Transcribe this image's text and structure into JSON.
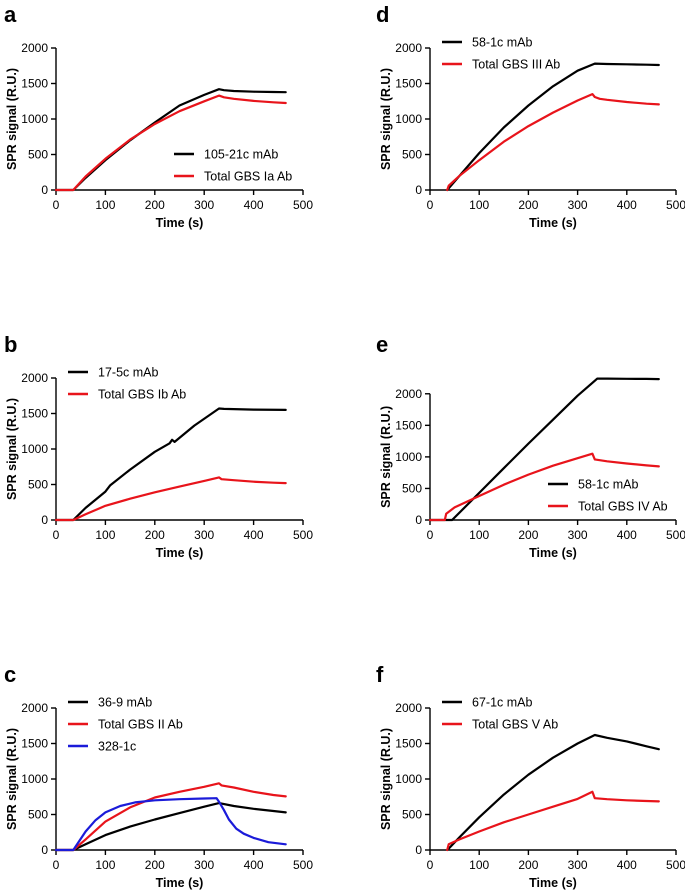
{
  "chart_data": [
    {
      "panel": "a",
      "type": "line",
      "xlabel": "Time (s)",
      "ylabel": "SPR signal (R.U.)",
      "xlim": [
        0,
        500
      ],
      "ylim": [
        0,
        2000
      ],
      "xticks": [
        0,
        100,
        200,
        300,
        400,
        500
      ],
      "yticks": [
        0,
        500,
        1000,
        1500,
        2000
      ],
      "legend_position": "bottom-right",
      "series": [
        {
          "name": "105-21c mAb",
          "color": "#000000",
          "x": [
            0,
            35,
            60,
            100,
            150,
            200,
            250,
            300,
            330,
            340,
            360,
            400,
            440,
            465
          ],
          "y": [
            0,
            0,
            170,
            420,
            700,
            950,
            1190,
            1340,
            1420,
            1405,
            1395,
            1385,
            1380,
            1378
          ]
        },
        {
          "name": "Total GBS Ia Ab",
          "color": "#e8141b",
          "x": [
            0,
            35,
            60,
            100,
            150,
            200,
            250,
            300,
            330,
            340,
            360,
            400,
            440,
            465
          ],
          "y": [
            0,
            0,
            190,
            440,
            710,
            930,
            1110,
            1250,
            1330,
            1305,
            1285,
            1255,
            1235,
            1225
          ]
        }
      ]
    },
    {
      "panel": "b",
      "type": "line",
      "xlabel": "Time (s)",
      "ylabel": "SPR signal (R.U.)",
      "xlim": [
        0,
        500
      ],
      "ylim": [
        0,
        2000
      ],
      "xticks": [
        0,
        100,
        200,
        300,
        400,
        500
      ],
      "yticks": [
        0,
        500,
        1000,
        1500,
        2000
      ],
      "legend_position": "top-left",
      "series": [
        {
          "name": "17-5c mAb",
          "color": "#000000",
          "x": [
            0,
            35,
            60,
            100,
            110,
            150,
            200,
            230,
            235,
            240,
            280,
            330,
            340,
            400,
            465
          ],
          "y": [
            0,
            0,
            170,
            400,
            490,
            710,
            960,
            1080,
            1130,
            1100,
            1330,
            1570,
            1565,
            1555,
            1550
          ]
        },
        {
          "name": "Total GBS Ib Ab",
          "color": "#e8141b",
          "x": [
            0,
            35,
            60,
            100,
            150,
            200,
            250,
            300,
            330,
            335,
            360,
            400,
            440,
            465
          ],
          "y": [
            0,
            0,
            80,
            200,
            300,
            390,
            470,
            550,
            600,
            575,
            560,
            540,
            525,
            520
          ]
        }
      ]
    },
    {
      "panel": "c",
      "type": "line",
      "xlabel": "Time (s)",
      "ylabel": "SPR signal (R.U.)",
      "xlim": [
        0,
        500
      ],
      "ylim": [
        0,
        2000
      ],
      "xticks": [
        0,
        100,
        200,
        300,
        400,
        500
      ],
      "yticks": [
        0,
        500,
        1000,
        1500,
        2000
      ],
      "legend_position": "top-left",
      "series": [
        {
          "name": "36-9 mAb",
          "color": "#000000",
          "x": [
            0,
            35,
            60,
            100,
            150,
            200,
            250,
            300,
            330,
            360,
            400,
            440,
            465
          ],
          "y": [
            0,
            0,
            80,
            210,
            330,
            430,
            520,
            610,
            660,
            620,
            580,
            550,
            530
          ]
        },
        {
          "name": "Total GBS II Ab",
          "color": "#e8141b",
          "x": [
            0,
            35,
            60,
            100,
            150,
            200,
            250,
            300,
            330,
            335,
            360,
            400,
            440,
            465
          ],
          "y": [
            0,
            0,
            150,
            400,
            600,
            740,
            820,
            890,
            940,
            910,
            880,
            820,
            775,
            755
          ]
        },
        {
          "name": "328-1c",
          "color": "#1b1bd9",
          "x": [
            0,
            35,
            60,
            80,
            100,
            130,
            160,
            200,
            250,
            300,
            325,
            330,
            340,
            350,
            365,
            380,
            400,
            430,
            465
          ],
          "y": [
            0,
            0,
            260,
            420,
            530,
            620,
            670,
            700,
            715,
            725,
            730,
            680,
            560,
            430,
            300,
            230,
            170,
            110,
            80
          ]
        }
      ]
    },
    {
      "panel": "d",
      "type": "line",
      "xlabel": "Time (s)",
      "ylabel": "SPR signal (R.U.)",
      "xlim": [
        0,
        500
      ],
      "ylim": [
        0,
        2000
      ],
      "xticks": [
        0,
        100,
        200,
        300,
        400,
        500
      ],
      "yticks": [
        0,
        500,
        1000,
        1500,
        2000
      ],
      "legend_position": "top-left",
      "series": [
        {
          "name": "58-1c mAb",
          "color": "#000000",
          "x": [
            35,
            40,
            60,
            100,
            150,
            200,
            250,
            300,
            335,
            360,
            400,
            440,
            465
          ],
          "y": [
            0,
            40,
            200,
            520,
            880,
            1190,
            1460,
            1680,
            1780,
            1775,
            1770,
            1765,
            1760
          ]
        },
        {
          "name": "Total GBS III Ab",
          "color": "#e8141b",
          "x": [
            35,
            38,
            60,
            100,
            150,
            200,
            250,
            300,
            330,
            335,
            345,
            360,
            400,
            440,
            465
          ],
          "y": [
            0,
            60,
            200,
            420,
            680,
            900,
            1090,
            1260,
            1350,
            1310,
            1285,
            1270,
            1240,
            1215,
            1205
          ]
        }
      ]
    },
    {
      "panel": "e",
      "type": "line",
      "xlabel": "Time (s)",
      "ylabel": "SPR signal (R.U.)",
      "xlim": [
        0,
        500
      ],
      "ylim": [
        0,
        2250
      ],
      "xticks": [
        0,
        100,
        200,
        300,
        400,
        500
      ],
      "yticks": [
        0,
        500,
        1000,
        1500,
        2000
      ],
      "legend_position": "bottom-right",
      "series": [
        {
          "name": "58-1c mAb",
          "color": "#000000",
          "x": [
            0,
            45,
            100,
            150,
            200,
            250,
            300,
            340,
            360,
            400,
            440,
            465
          ],
          "y": [
            0,
            0,
            430,
            820,
            1210,
            1590,
            1970,
            2240,
            2240,
            2238,
            2235,
            2232
          ]
        },
        {
          "name": "Total GBS IV Ab",
          "color": "#e8141b",
          "x": [
            0,
            30,
            33,
            50,
            100,
            150,
            200,
            250,
            300,
            330,
            335,
            360,
            400,
            440,
            465
          ],
          "y": [
            0,
            0,
            100,
            200,
            380,
            560,
            720,
            860,
            980,
            1050,
            960,
            930,
            895,
            865,
            850
          ]
        }
      ]
    },
    {
      "panel": "f",
      "type": "line",
      "xlabel": "Time (s)",
      "ylabel": "SPR signal (R.U.)",
      "xlim": [
        0,
        500
      ],
      "ylim": [
        0,
        2000
      ],
      "xticks": [
        0,
        100,
        200,
        300,
        400,
        500
      ],
      "yticks": [
        0,
        500,
        1000,
        1500,
        2000
      ],
      "legend_position": "top-left",
      "series": [
        {
          "name": "67-1c mAb",
          "color": "#000000",
          "x": [
            35,
            38,
            60,
            100,
            150,
            200,
            250,
            300,
            335,
            360,
            400,
            440,
            465
          ],
          "y": [
            0,
            20,
            180,
            460,
            780,
            1060,
            1300,
            1500,
            1620,
            1580,
            1530,
            1460,
            1420
          ]
        },
        {
          "name": "Total GBS V Ab",
          "color": "#e8141b",
          "x": [
            35,
            38,
            60,
            100,
            150,
            200,
            250,
            300,
            330,
            335,
            360,
            400,
            440,
            465
          ],
          "y": [
            0,
            80,
            150,
            260,
            390,
            500,
            610,
            720,
            820,
            730,
            715,
            700,
            690,
            685
          ]
        }
      ]
    }
  ]
}
